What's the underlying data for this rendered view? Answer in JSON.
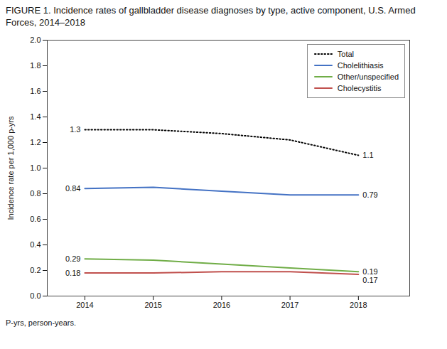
{
  "chart_data": {
    "type": "line",
    "title": "FIGURE 1. Incidence rates of gallbladder disease diagnoses by type, active component, U.S. Armed Forces, 2014–2018",
    "ylabel": "Incidence rate per 1,000 p-yrs",
    "footnote": "P-yrs, person-years.",
    "x": [
      2014,
      2015,
      2016,
      2017,
      2018
    ],
    "series": [
      {
        "name": "Total",
        "color": "#000000",
        "line_style": "dotted",
        "values": [
          1.3,
          1.3,
          1.27,
          1.22,
          1.1
        ],
        "value_labels": [
          "1.3",
          null,
          null,
          null,
          "1.1"
        ]
      },
      {
        "name": "Cholelithiasis",
        "color": "#4472C4",
        "line_style": "solid",
        "values": [
          0.84,
          0.85,
          0.82,
          0.79,
          0.79
        ],
        "value_labels": [
          "0.84",
          null,
          null,
          null,
          "0.79"
        ]
      },
      {
        "name": "Other/unspecified",
        "color": "#70AD47",
        "line_style": "solid",
        "values": [
          0.29,
          0.28,
          0.25,
          0.22,
          0.19
        ],
        "value_labels": [
          "0.29",
          null,
          null,
          null,
          "0.19"
        ]
      },
      {
        "name": "Cholecystitis",
        "color": "#C0504D",
        "line_style": "solid",
        "values": [
          0.18,
          0.18,
          0.19,
          0.19,
          0.17
        ],
        "value_labels": [
          "0.18",
          null,
          null,
          null,
          "0.17"
        ]
      }
    ],
    "xlim": [
      2013.45,
      2018.75
    ],
    "xticks": [
      2014,
      2015,
      2016,
      2017,
      2018
    ],
    "ylim": [
      0,
      2.0
    ],
    "yticks": [
      {
        "value": 0,
        "label": "0.0"
      },
      0.2,
      0.4,
      0.6,
      0.8,
      {
        "value": 1,
        "label": "1.0"
      },
      1.2,
      1.4,
      1.6,
      1.8,
      {
        "value": 2,
        "label": "2.0"
      }
    ],
    "data_labels": true,
    "legend": "upper right"
  }
}
